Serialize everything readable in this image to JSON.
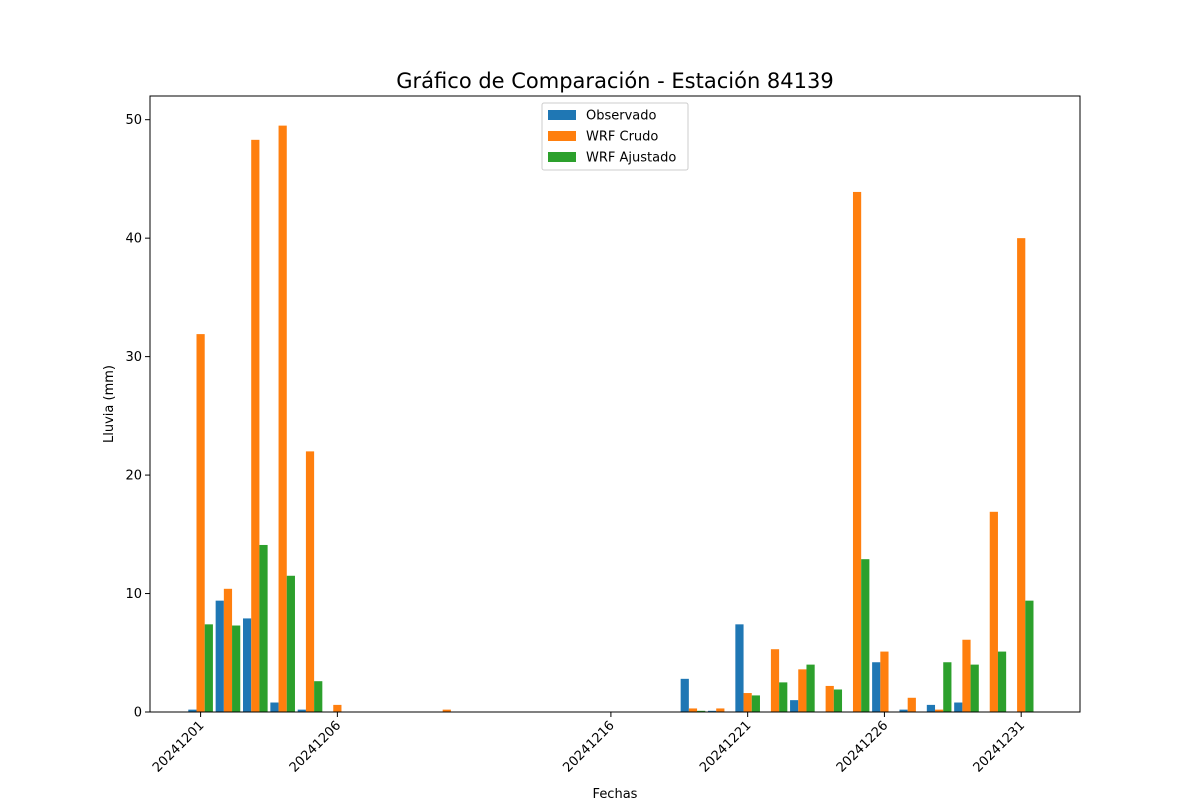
{
  "chart_data": {
    "type": "bar",
    "title": "Gráfico de Comparación - Estación 84139",
    "xlabel": "Fechas",
    "ylabel": "Lluvia (mm)",
    "ylim": [
      0,
      52
    ],
    "yticks": [
      "0",
      "10",
      "20",
      "30",
      "40",
      "50"
    ],
    "x_days": [
      1,
      2,
      3,
      4,
      5,
      6,
      10,
      19,
      20,
      21,
      22,
      23,
      24,
      25,
      26,
      27,
      28,
      29,
      30,
      31
    ],
    "xlim_days": [
      -0.85,
      33.15
    ],
    "xticks": [
      {
        "day": 1,
        "label": "20241201"
      },
      {
        "day": 6,
        "label": "20241206"
      },
      {
        "day": 16,
        "label": "20241216"
      },
      {
        "day": 21,
        "label": "20241221"
      },
      {
        "day": 26,
        "label": "20241226"
      },
      {
        "day": 31,
        "label": "20241231"
      }
    ],
    "legend_position": "upper-center",
    "series": [
      {
        "name": "Observado",
        "color": "#1f77b4",
        "values": [
          0.2,
          9.4,
          7.9,
          0.8,
          0.2,
          0,
          0,
          2.8,
          0.1,
          7.4,
          0,
          1.0,
          0,
          0,
          4.2,
          0.2,
          0.6,
          0.8,
          0,
          0
        ]
      },
      {
        "name": "WRF Crudo",
        "color": "#ff7f0e",
        "values": [
          31.9,
          10.4,
          48.3,
          49.5,
          22.0,
          0.6,
          0.2,
          0.3,
          0.3,
          1.6,
          5.3,
          3.6,
          2.2,
          43.9,
          5.1,
          1.2,
          0.2,
          6.1,
          16.9,
          40.0
        ]
      },
      {
        "name": "WRF Ajustado",
        "color": "#2ca02c",
        "values": [
          7.4,
          7.3,
          14.1,
          11.5,
          2.6,
          0,
          0,
          0.1,
          0,
          1.4,
          2.5,
          4.0,
          1.9,
          12.9,
          0,
          0,
          4.2,
          4.0,
          5.1,
          9.4
        ]
      }
    ]
  }
}
